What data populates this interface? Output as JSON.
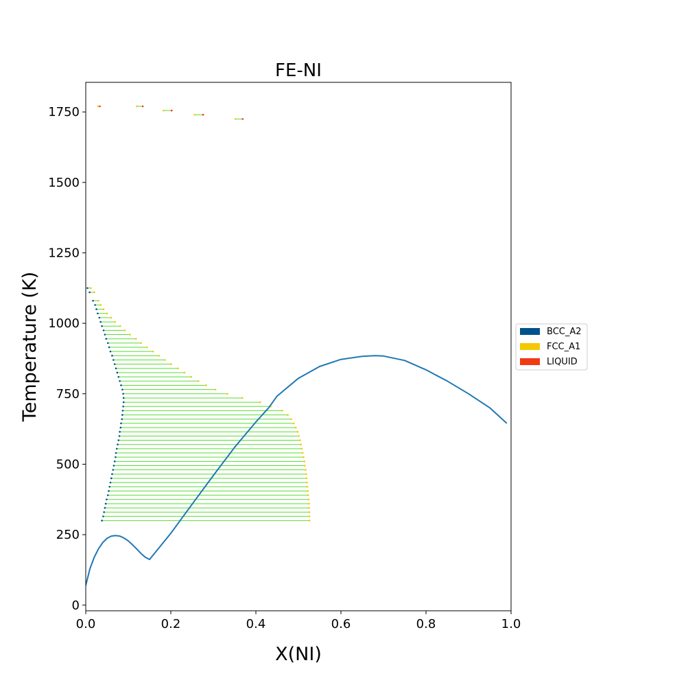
{
  "chart_data": {
    "type": "scatter",
    "title": "FE-NI",
    "xlabel": "X(NI)",
    "ylabel": "Temperature (K)",
    "xlim": [
      0.0,
      1.0
    ],
    "ylim": [
      -20,
      1855
    ],
    "xticks": [
      0.0,
      0.2,
      0.4,
      0.6,
      0.8,
      1.0
    ],
    "xtick_labels": [
      "0.0",
      "0.2",
      "0.4",
      "0.6",
      "0.8",
      "1.0"
    ],
    "yticks": [
      0,
      250,
      500,
      750,
      1000,
      1250,
      1500,
      1750
    ],
    "ytick_labels": [
      "0",
      "250",
      "500",
      "750",
      "1000",
      "1250",
      "1500",
      "1750"
    ],
    "grid": false,
    "legend_position": "right",
    "legend": [
      {
        "label": "BCC_A2",
        "color": "#00538a"
      },
      {
        "label": "FCC_A1",
        "color": "#f4c800"
      },
      {
        "label": "LIQUID",
        "color": "#f13a13"
      }
    ],
    "tieline_color": "#55dd33",
    "curve_color": "#1f77b4",
    "bcc_fcc_boundary": {
      "T": [
        300,
        315,
        330,
        345,
        360,
        375,
        390,
        405,
        420,
        435,
        450,
        465,
        480,
        495,
        510,
        525,
        540,
        555,
        570,
        585,
        600,
        615,
        630,
        645,
        660,
        675,
        690,
        705,
        720,
        735,
        750,
        765,
        780,
        795,
        810,
        825,
        840,
        855,
        870,
        885,
        900,
        915,
        930,
        945,
        960,
        975,
        990,
        1005,
        1020,
        1035,
        1050,
        1065,
        1080,
        1110,
        1125
      ],
      "x_bcc": [
        0.038,
        0.041,
        0.043,
        0.045,
        0.047,
        0.049,
        0.052,
        0.054,
        0.056,
        0.058,
        0.06,
        0.062,
        0.064,
        0.066,
        0.068,
        0.07,
        0.071,
        0.073,
        0.075,
        0.077,
        0.079,
        0.08,
        0.082,
        0.083,
        0.085,
        0.086,
        0.087,
        0.088,
        0.089,
        0.089,
        0.088,
        0.086,
        0.083,
        0.08,
        0.077,
        0.074,
        0.071,
        0.068,
        0.065,
        0.062,
        0.058,
        0.055,
        0.052,
        0.048,
        0.045,
        0.042,
        0.038,
        0.035,
        0.032,
        0.028,
        0.025,
        0.022,
        0.017,
        0.009,
        0.004
      ],
      "x_fcc": [
        0.526,
        0.526,
        0.526,
        0.525,
        0.525,
        0.524,
        0.523,
        0.522,
        0.521,
        0.52,
        0.519,
        0.518,
        0.517,
        0.515,
        0.514,
        0.512,
        0.51,
        0.508,
        0.506,
        0.504,
        0.501,
        0.498,
        0.494,
        0.489,
        0.483,
        0.475,
        0.462,
        0.435,
        0.41,
        0.368,
        0.333,
        0.305,
        0.283,
        0.265,
        0.248,
        0.232,
        0.217,
        0.201,
        0.186,
        0.172,
        0.158,
        0.144,
        0.13,
        0.118,
        0.104,
        0.092,
        0.081,
        0.069,
        0.06,
        0.05,
        0.042,
        0.035,
        0.03,
        0.02,
        0.012
      ]
    },
    "fcc_liquid_boundary": {
      "T": [
        1770,
        1770,
        1755,
        1740,
        1725
      ],
      "x_fcc": [
        0.029,
        0.12,
        0.183,
        0.256,
        0.352
      ],
      "x_liquid": [
        0.033,
        0.134,
        0.202,
        0.276,
        0.369
      ]
    },
    "curve": {
      "x": [
        0.0,
        0.01,
        0.02,
        0.03,
        0.04,
        0.05,
        0.06,
        0.07,
        0.08,
        0.09,
        0.1,
        0.11,
        0.12,
        0.13,
        0.14,
        0.15,
        0.2,
        0.25,
        0.3,
        0.35,
        0.4,
        0.43,
        0.45,
        0.5,
        0.55,
        0.6,
        0.65,
        0.68,
        0.7,
        0.75,
        0.8,
        0.85,
        0.9,
        0.95,
        0.99
      ],
      "y": [
        70,
        130,
        170,
        200,
        222,
        237,
        245,
        247,
        245,
        238,
        228,
        214,
        199,
        183,
        170,
        162,
        255,
        358,
        460,
        560,
        650,
        700,
        742,
        805,
        847,
        872,
        883,
        885,
        884,
        868,
        835,
        795,
        750,
        700,
        645
      ]
    }
  }
}
